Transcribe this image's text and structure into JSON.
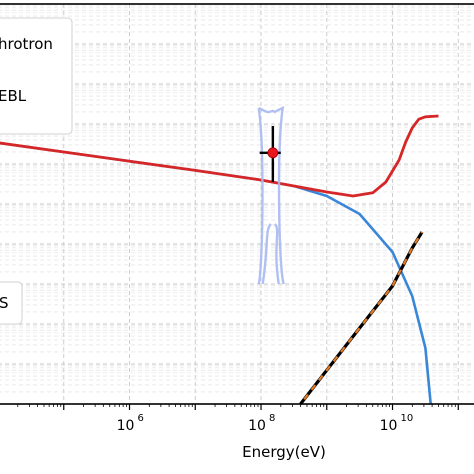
{
  "chart_data": {
    "type": "line",
    "xlabel": "Energy(eV)",
    "xscale": "log",
    "x_ticks": [
      {
        "value": 1000000.0,
        "base": "10",
        "exp": "6"
      },
      {
        "value": 100000000.0,
        "base": "10",
        "exp": "8"
      },
      {
        "value": 10000000000.0,
        "base": "10",
        "exp": "10"
      }
    ],
    "xlim": [
      10000.0,
      200000000000.0
    ],
    "yscale": "log",
    "ylim_log10": [
      0,
      10
    ],
    "grid": true,
    "legend_top": {
      "placement": "upper-left",
      "entries": [
        "hrotron",
        "EBL"
      ]
    },
    "legend_bottom": {
      "placement": "lower-left",
      "entries": [
        "S"
      ]
    },
    "series": [
      {
        "color": "#3a86d8",
        "points": [
          [
            4.0,
            6.53
          ],
          [
            5.0,
            6.3
          ],
          [
            6.0,
            6.07
          ],
          [
            7.0,
            5.84
          ],
          [
            8.0,
            5.6
          ],
          [
            8.5,
            5.45
          ],
          [
            9.0,
            5.2
          ],
          [
            9.5,
            4.75
          ],
          [
            10.0,
            3.8
          ],
          [
            10.3,
            2.7
          ],
          [
            10.5,
            1.4
          ],
          [
            10.58,
            0.0
          ]
        ]
      },
      {
        "color": "#000000",
        "dash_color": "#e07b28",
        "points": [
          [
            8.6,
            0.0
          ],
          [
            9.5,
            1.9
          ],
          [
            10.0,
            2.95
          ],
          [
            10.3,
            3.9
          ],
          [
            10.45,
            4.3
          ]
        ]
      },
      {
        "color": "#d62728",
        "points": [
          [
            4.0,
            6.53
          ],
          [
            5.0,
            6.3
          ],
          [
            6.0,
            6.07
          ],
          [
            7.0,
            5.84
          ],
          [
            8.0,
            5.6
          ],
          [
            8.5,
            5.45
          ],
          [
            9.0,
            5.3
          ],
          [
            9.4,
            5.2
          ],
          [
            9.7,
            5.28
          ],
          [
            9.9,
            5.55
          ],
          [
            10.1,
            6.1
          ],
          [
            10.2,
            6.55
          ],
          [
            10.3,
            6.9
          ],
          [
            10.4,
            7.12
          ],
          [
            10.5,
            7.18
          ],
          [
            10.7,
            7.2
          ]
        ]
      }
    ],
    "data_point": {
      "x_log10": 8.18,
      "y_log10": 6.28,
      "x_err_log10": [
        7.98,
        8.3
      ],
      "y_err_log10": [
        5.55,
        6.95
      ],
      "color": "#e8141e"
    },
    "butterfly_color": "#a9b9f2"
  }
}
